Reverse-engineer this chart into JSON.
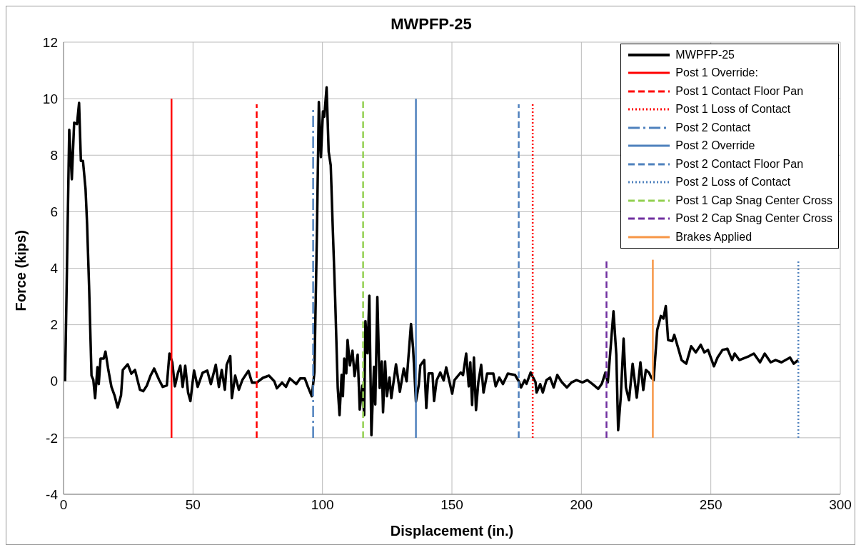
{
  "chart_data": {
    "type": "line",
    "title": "MWPFP-25",
    "xlabel": "Displacement (in.)",
    "ylabel": "Force (kips)",
    "xlim": [
      0,
      300
    ],
    "xticks": [
      0,
      50,
      100,
      150,
      200,
      250,
      300
    ],
    "ylim": [
      -4,
      12
    ],
    "yticks": [
      -4,
      -2,
      0,
      2,
      4,
      6,
      8,
      10,
      12
    ],
    "grid": true,
    "legend": "top right",
    "series": [
      {
        "name": "MWPFP-25",
        "color": "#000000",
        "line_style": "solid",
        "x": [
          0.6,
          2.2,
          3.2,
          4.1,
          5.2,
          6.0,
          6.7,
          7.5,
          8.5,
          9.1,
          9.9,
          10.8,
          11.5,
          12.2,
          13.1,
          13.6,
          14.3,
          15.5,
          16.2,
          17.3,
          18.5,
          19.7,
          20.9,
          22.2,
          22.9,
          24.8,
          26.2,
          27.6,
          29.5,
          30.8,
          32.2,
          33.6,
          35.0,
          36.9,
          38.3,
          39.9,
          40.9,
          42.0,
          43.0,
          44.2,
          45.1,
          46.0,
          47.0,
          48.1,
          49.0,
          50.4,
          51.8,
          53.7,
          55.5,
          56.9,
          58.8,
          60.0,
          61.1,
          62.3,
          63.0,
          64.4,
          65.0,
          66.3,
          67.7,
          69.1,
          71.4,
          72.8,
          74.6,
          77.0,
          79.3,
          81.4,
          82.4,
          84.4,
          85.9,
          87.4,
          89.9,
          91.4,
          93.2,
          94.4,
          95.9,
          96.9,
          97.9,
          98.6,
          99.4,
          100.2,
          100.7,
          101.6,
          102.4,
          103.2,
          103.9,
          104.9,
          105.9,
          106.6,
          107.4,
          107.9,
          108.4,
          109.2,
          109.7,
          110.6,
          111.6,
          112.4,
          113.6,
          114.4,
          115.4,
          116.1,
          116.6,
          117.4,
          118.1,
          118.9,
          119.9,
          120.4,
          121.2,
          122.1,
          122.9,
          123.4,
          124.2,
          124.9,
          125.9,
          126.6,
          128.4,
          129.9,
          131.4,
          132.5,
          134.2,
          135.0,
          136.1,
          137.2,
          137.8,
          139.3,
          140.1,
          141.0,
          142.5,
          143.1,
          144.1,
          145.5,
          146.8,
          147.8,
          150.1,
          151.0,
          153.4,
          154.3,
          155.5,
          156.5,
          157.1,
          157.8,
          158.5,
          159.3,
          160.2,
          161.3,
          162.2,
          163.6,
          166.0,
          166.9,
          168.3,
          169.7,
          171.6,
          174.4,
          175.8,
          176.7,
          178.1,
          178.8,
          180.4,
          182.3,
          182.7,
          184.1,
          185.1,
          186.5,
          187.9,
          189.3,
          190.7,
          192.5,
          194.4,
          196.2,
          198.1,
          200.4,
          202.3,
          204.2,
          206.5,
          207.9,
          209.3,
          210.2,
          210.7,
          212.4,
          213.5,
          214.2,
          215.2,
          216.3,
          217.2,
          218.4,
          219.8,
          221.4,
          222.8,
          223.9,
          224.9,
          226.1,
          227.0,
          227.9,
          229.3,
          230.7,
          231.7,
          232.6,
          233.5,
          235.1,
          235.9,
          237.3,
          238.7,
          240.5,
          242.4,
          244.2,
          246.1,
          247.5,
          248.9,
          251.2,
          252.6,
          254.5,
          256.4,
          258.2,
          259.2,
          261.0,
          264.8,
          266.6,
          269.0,
          270.8,
          273.1,
          275.0,
          277.3,
          280.6,
          282.0,
          283.7
        ],
        "values": [
          0,
          8.9,
          7.15,
          9.15,
          9.1,
          9.85,
          7.8,
          7.8,
          6.8,
          5.55,
          3.25,
          0.2,
          0.05,
          -0.6,
          0.5,
          -0.1,
          0.8,
          0.8,
          1.05,
          0.4,
          -0.2,
          -0.5,
          -0.93,
          -0.5,
          0.4,
          0.6,
          0.27,
          0.4,
          -0.3,
          -0.35,
          -0.15,
          0.2,
          0.45,
          0.05,
          -0.2,
          -0.15,
          0.98,
          0.67,
          -0.18,
          0.3,
          0.55,
          -0.2,
          0.55,
          -0.4,
          -0.7,
          0.38,
          -0.2,
          0.3,
          0.38,
          -0.1,
          0.58,
          -0.2,
          0.4,
          -0.3,
          0.58,
          0.89,
          -0.6,
          0.2,
          -0.3,
          0.05,
          0.37,
          -0.05,
          -0.05,
          0.12,
          0.2,
          0,
          -0.25,
          -0.05,
          -0.2,
          0.1,
          -0.1,
          0.1,
          0.1,
          -0.2,
          -0.53,
          0.32,
          5.46,
          9.88,
          7.93,
          9.55,
          9.36,
          10.4,
          8.12,
          7.64,
          5.65,
          2.94,
          -0.24,
          -1.2,
          0.23,
          -0.53,
          0.8,
          0.28,
          1.46,
          0.56,
          1.08,
          0.18,
          0.94,
          -1.0,
          -0.15,
          -1.2,
          2.13,
          0.99,
          3.03,
          -1.91,
          0.51,
          -0.82,
          2.98,
          -0.24,
          0.7,
          -1.1,
          0.7,
          -0.53,
          0.13,
          -0.6,
          0.6,
          -0.37,
          0.45,
          0,
          2.03,
          1.18,
          -0.72,
          -0.13,
          0.56,
          0.75,
          -0.95,
          0.28,
          0.28,
          -0.7,
          0.03,
          0.31,
          0.03,
          0.49,
          -0.44,
          0.04,
          0.31,
          0.22,
          0.98,
          -0.18,
          0.67,
          -0.84,
          0.84,
          -1.02,
          -0.04,
          0.58,
          -0.4,
          0.27,
          0.27,
          -0.18,
          0.13,
          -0.1,
          0.27,
          0.22,
          0,
          -0.22,
          0.04,
          -0.09,
          0.31,
          -0.04,
          -0.4,
          -0.1,
          -0.4,
          0.04,
          0.13,
          -0.22,
          0.22,
          -0.04,
          -0.22,
          -0.04,
          0.04,
          -0.04,
          0.04,
          -0.09,
          -0.27,
          -0.09,
          0.31,
          -0.04,
          0.49,
          2.48,
          0.93,
          -1.73,
          -0.58,
          1.51,
          -0.22,
          -0.67,
          0.62,
          -0.58,
          0.67,
          -0.31,
          0.4,
          0.31,
          0.13,
          0.04,
          1.82,
          2.31,
          2.22,
          2.66,
          1.46,
          1.42,
          1.64,
          1.2,
          0.75,
          0.62,
          1.24,
          1.02,
          1.29,
          1.02,
          1.11,
          0.53,
          0.84,
          1.11,
          1.15,
          0.75,
          0.98,
          0.75,
          0.89,
          0.98,
          0.67,
          0.98,
          0.67,
          0.75,
          0.67,
          0.84,
          0.62,
          0.75
        ]
      },
      {
        "name": "Post 1 Override:",
        "color": "#ff0000",
        "line_style": "solid",
        "x": [
          41.7,
          41.7
        ],
        "values": [
          -2,
          10
        ]
      },
      {
        "name": "Post 1 Contact Floor Pan",
        "color": "#ff0000",
        "line_style": "dashed",
        "x": [
          74.6,
          74.6
        ],
        "values": [
          -2,
          9.8
        ]
      },
      {
        "name": "Post 1 Loss of Contact",
        "color": "#ff0000",
        "line_style": "dotted",
        "x": [
          181.2,
          181.2
        ],
        "values": [
          -2,
          9.8
        ]
      },
      {
        "name": "Post 2 Contact",
        "color": "#4f81bd",
        "line_style": "dashdot",
        "x": [
          96.4,
          96.4
        ],
        "values": [
          -2,
          9.6
        ]
      },
      {
        "name": "Post 2 Override",
        "color": "#4f81bd",
        "line_style": "solid",
        "x": [
          136.1,
          136.1
        ],
        "values": [
          -2,
          10
        ]
      },
      {
        "name": "Post 2 Contact Floor Pan",
        "color": "#4f81bd",
        "line_style": "dashed",
        "x": [
          175.8,
          175.8
        ],
        "values": [
          -2,
          9.8
        ]
      },
      {
        "name": "Post 2 Loss of Contact",
        "color": "#4f81bd",
        "line_style": "dotted",
        "x": [
          283.8,
          283.8
        ],
        "values": [
          -2,
          4.3
        ]
      },
      {
        "name": "Post 1 Cap Snag Center Cross",
        "color": "#92d050",
        "line_style": "dashed",
        "x": [
          115.7,
          115.7
        ],
        "values": [
          -2,
          10
        ]
      },
      {
        "name": "Post 2 Cap Snag Center Cross",
        "color": "#7030a0",
        "line_style": "dashed",
        "x": [
          209.7,
          209.7
        ],
        "values": [
          -2,
          4.3
        ]
      },
      {
        "name": "Brakes Applied",
        "color": "#f79646",
        "line_style": "solid",
        "x": [
          227.6,
          227.6
        ],
        "values": [
          -2,
          4.3
        ]
      }
    ]
  }
}
